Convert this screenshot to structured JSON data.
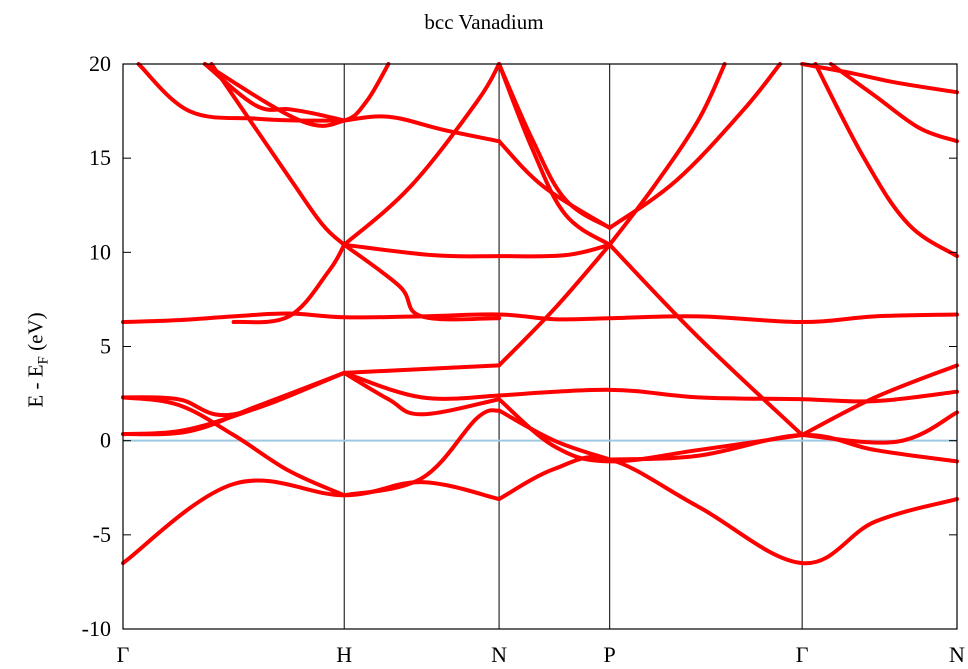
{
  "chart_data": {
    "type": "line",
    "title": "bcc Vanadium",
    "ylabel_main": "E - E",
    "ylabel_sub": "F",
    "ylabel_unit": " (eV)",
    "ylim": [
      -10,
      20
    ],
    "yticks": [
      -10,
      -5,
      0,
      5,
      10,
      15,
      20
    ],
    "ytick_labels": [
      "-10",
      "-5",
      "0",
      "5",
      "10",
      "15",
      "20"
    ],
    "xticks": [
      0,
      1,
      1.7,
      2.2,
      3.07,
      3.77
    ],
    "xtick_labels": [
      "Γ",
      "H",
      "N",
      "P",
      "Γ",
      "N"
    ],
    "xlim": [
      0,
      3.77
    ],
    "grid": "vertical lines at symmetry points",
    "fermi_level": 0,
    "colors": {
      "bands": "#ff0000",
      "fermi": "#9ecae1",
      "axes": "#000000"
    },
    "series": [
      {
        "x": [
          0,
          0.5,
          1,
          1.35,
          1.7
        ],
        "values": [
          -6.5,
          -2.3,
          -2.9,
          -2.2,
          -3.1
        ]
      },
      {
        "x": [
          1.7,
          1.95,
          2.2,
          2.6,
          3.07,
          3.4,
          3.77
        ],
        "values": [
          -3.1,
          -1.5,
          -1.0,
          -3.5,
          -6.5,
          -4.3,
          -3.1
        ]
      },
      {
        "x": [
          0,
          0.25,
          0.5,
          0.75,
          1
        ],
        "values": [
          2.3,
          1.9,
          0.3,
          -1.6,
          -2.9
        ]
      },
      {
        "x": [
          1,
          1.35,
          1.6,
          1.7
        ],
        "values": [
          -2.9,
          -2.0,
          1.2,
          1.6
        ]
      },
      {
        "x": [
          1.7,
          1.95,
          2.2
        ],
        "values": [
          1.6,
          0.0,
          -1.0
        ]
      },
      {
        "x": [
          2.2,
          2.6,
          3.07,
          3.4,
          3.77
        ],
        "values": [
          -1.0,
          -0.8,
          0.3,
          -0.5,
          -1.1
        ]
      },
      {
        "x": [
          0,
          0.3,
          0.6,
          1
        ],
        "values": [
          0.35,
          0.5,
          1.8,
          3.6
        ]
      },
      {
        "x": [
          1,
          1.2,
          1.35,
          1.7
        ],
        "values": [
          3.6,
          2.2,
          1.4,
          2.2
        ]
      },
      {
        "x": [
          1.7,
          1.95,
          2.2,
          2.6,
          3.07
        ],
        "values": [
          2.2,
          -0.3,
          -1.1,
          -0.5,
          0.3
        ]
      },
      {
        "x": [
          3.07,
          3.5,
          3.77
        ],
        "values": [
          0.3,
          -0.05,
          1.5
        ]
      },
      {
        "x": [
          0,
          0.25,
          0.5,
          0.75,
          1
        ],
        "values": [
          0.35,
          0.5,
          1.3,
          2.4,
          3.6
        ]
      },
      {
        "x": [
          1,
          1.35,
          1.7
        ],
        "values": [
          3.6,
          2.3,
          2.4
        ]
      },
      {
        "x": [
          1.7,
          2.2,
          2.6,
          3.07,
          3.4,
          3.77
        ],
        "values": [
          2.4,
          2.7,
          2.3,
          2.2,
          2.1,
          2.6
        ]
      },
      {
        "x": [
          0,
          0.25,
          0.5,
          1
        ],
        "values": [
          2.3,
          2.2,
          1.4,
          3.6
        ]
      },
      {
        "x": [
          1,
          1.35,
          1.7
        ],
        "values": [
          3.6,
          3.8,
          4.0
        ]
      },
      {
        "x": [
          1.7,
          1.95,
          2.2
        ],
        "values": [
          4.0,
          7.0,
          10.4
        ]
      },
      {
        "x": [
          2.2,
          2.6,
          3.07
        ],
        "values": [
          10.4,
          5.5,
          0.3
        ]
      },
      {
        "x": [
          3.07,
          3.4,
          3.77
        ],
        "values": [
          0.3,
          2.3,
          4.0
        ]
      },
      {
        "x": [
          0.5,
          0.75,
          0.93,
          1
        ],
        "values": [
          6.3,
          6.6,
          9.0,
          10.4
        ]
      },
      {
        "x": [
          1,
          1.25,
          1.35,
          1.7
        ],
        "values": [
          10.4,
          8.2,
          6.6,
          6.5
        ]
      },
      {
        "x": [
          1,
          1.4,
          1.7,
          2.0,
          2.2
        ],
        "values": [
          10.4,
          9.85,
          9.8,
          9.85,
          10.4
        ]
      },
      {
        "x": [
          2.2,
          2.4,
          2.6,
          2.72
        ],
        "values": [
          10.4,
          13.5,
          17.0,
          20
        ]
      },
      {
        "x": [
          0.4,
          0.75,
          0.9,
          1
        ],
        "values": [
          20,
          14.0,
          11.5,
          10.4
        ]
      },
      {
        "x": [
          1,
          1.3,
          1.6,
          1.7
        ],
        "values": [
          10.4,
          13.5,
          18.0,
          20
        ]
      },
      {
        "x": [
          1.7,
          1.85,
          2.0,
          2.2
        ],
        "values": [
          20,
          15.5,
          12.0,
          10.4
        ]
      },
      {
        "x": [
          1.7,
          1.85,
          2.0,
          2.2
        ],
        "values": [
          20,
          16.0,
          12.8,
          11.3
        ]
      },
      {
        "x": [
          2.2,
          2.5,
          2.8,
          2.97
        ],
        "values": [
          11.3,
          13.8,
          17.5,
          20
        ]
      },
      {
        "x": [
          0.07,
          0.3,
          0.6,
          0.8,
          1
        ],
        "values": [
          20,
          17.5,
          17.1,
          17.0,
          17.0
        ]
      },
      {
        "x": [
          1,
          1.2,
          1.45,
          1.7
        ],
        "values": [
          17.0,
          17.2,
          16.5,
          15.9
        ]
      },
      {
        "x": [
          1.7,
          1.9,
          2.2
        ],
        "values": [
          15.9,
          13.5,
          11.3
        ]
      },
      {
        "x": [
          0.37,
          0.6,
          0.75,
          0.85,
          1
        ],
        "values": [
          20,
          17.8,
          17.6,
          17.4,
          17.0
        ]
      },
      {
        "x": [
          0.37,
          0.8,
          1,
          1.1,
          1.2
        ],
        "values": [
          20,
          17.0,
          17.0,
          18.0,
          20
        ]
      },
      {
        "x": [
          3.13,
          3.35,
          3.55,
          3.77
        ],
        "values": [
          20,
          15.0,
          11.5,
          9.8
        ]
      },
      {
        "x": [
          3.2,
          3.4,
          3.6,
          3.77
        ],
        "values": [
          20,
          18.3,
          16.6,
          15.9
        ]
      },
      {
        "x": [
          3.07,
          3.3,
          3.5,
          3.77
        ],
        "values": [
          20,
          19.5,
          19.0,
          18.5
        ]
      },
      {
        "x": [
          0,
          0.25,
          0.5,
          0.75,
          1,
          1.35,
          1.7,
          1.95,
          2.2,
          2.6,
          3.07,
          3.4,
          3.77
        ],
        "values": [
          6.3,
          6.4,
          6.6,
          6.75,
          6.55,
          6.6,
          6.7,
          6.45,
          6.5,
          6.6,
          6.3,
          6.6,
          6.7
        ]
      }
    ]
  }
}
